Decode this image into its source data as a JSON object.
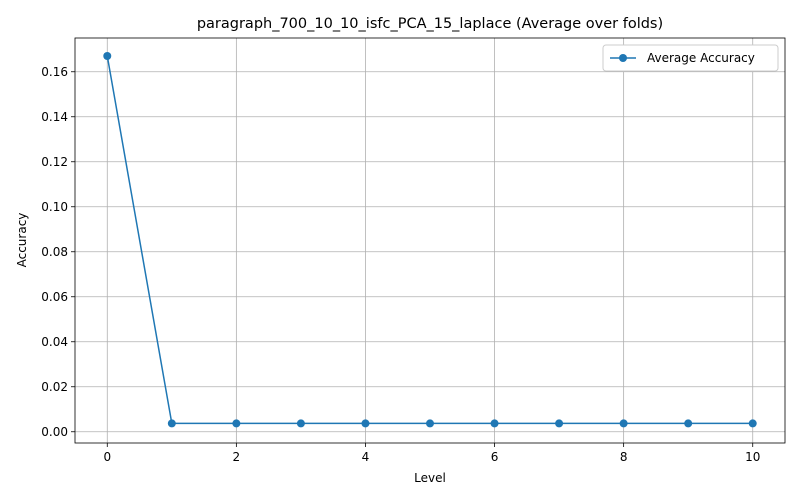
{
  "chart_data": {
    "type": "line",
    "title": "paragraph_700_10_10_isfc_PCA_15_laplace (Average over folds)",
    "xlabel": "Level",
    "ylabel": "Accuracy",
    "xlim": [
      -0.5,
      10.5
    ],
    "ylim": [
      -0.005,
      0.175
    ],
    "x_ticks": [
      0,
      2,
      4,
      6,
      8,
      10
    ],
    "x_tick_labels": [
      "0",
      "2",
      "4",
      "6",
      "8",
      "10"
    ],
    "y_ticks": [
      0.0,
      0.02,
      0.04,
      0.06,
      0.08,
      0.1,
      0.12,
      0.14,
      0.16
    ],
    "y_tick_labels": [
      "0.00",
      "0.02",
      "0.04",
      "0.06",
      "0.08",
      "0.10",
      "0.12",
      "0.14",
      "0.16"
    ],
    "grid": true,
    "legend_position": "top-right",
    "series": [
      {
        "name": "Average Accuracy",
        "color": "#1f77b4",
        "marker": "circle",
        "x": [
          0,
          1,
          2,
          3,
          4,
          5,
          6,
          7,
          8,
          9,
          10
        ],
        "y": [
          0.167,
          0.0037,
          0.0037,
          0.0037,
          0.0037,
          0.0037,
          0.0037,
          0.0037,
          0.0037,
          0.0037,
          0.0037
        ]
      }
    ]
  }
}
